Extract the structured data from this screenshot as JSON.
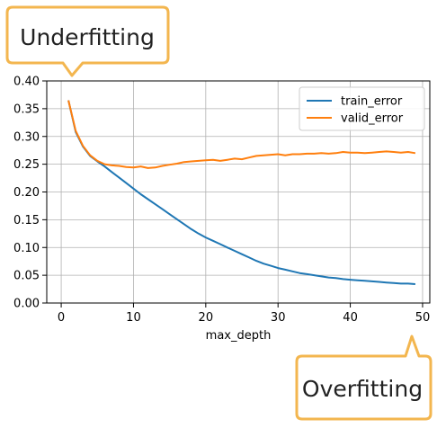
{
  "chart_data": {
    "type": "line",
    "xlabel": "max_depth",
    "ylabel": "",
    "xlim": [
      -2,
      51
    ],
    "ylim": [
      0.0,
      0.4
    ],
    "xticks": [
      0,
      10,
      20,
      30,
      40,
      50
    ],
    "yticks": [
      0.0,
      0.05,
      0.1,
      0.15,
      0.2,
      0.25,
      0.3,
      0.35,
      0.4
    ],
    "grid": true,
    "legend_position": "top-right",
    "x": [
      1,
      2,
      3,
      4,
      5,
      6,
      7,
      8,
      9,
      10,
      11,
      12,
      13,
      14,
      15,
      16,
      17,
      18,
      19,
      20,
      21,
      22,
      23,
      24,
      25,
      26,
      27,
      28,
      29,
      30,
      31,
      32,
      33,
      34,
      35,
      36,
      37,
      38,
      39,
      40,
      41,
      42,
      43,
      44,
      45,
      46,
      47,
      48,
      49
    ],
    "series": [
      {
        "name": "train_error",
        "color": "#1f77b4",
        "values": [
          0.365,
          0.308,
          0.282,
          0.265,
          0.255,
          0.246,
          0.236,
          0.226,
          0.216,
          0.206,
          0.196,
          0.187,
          0.178,
          0.169,
          0.16,
          0.151,
          0.142,
          0.133,
          0.125,
          0.118,
          0.112,
          0.106,
          0.1,
          0.094,
          0.088,
          0.082,
          0.076,
          0.071,
          0.067,
          0.063,
          0.06,
          0.057,
          0.054,
          0.052,
          0.05,
          0.048,
          0.046,
          0.045,
          0.043,
          0.042,
          0.041,
          0.04,
          0.039,
          0.038,
          0.037,
          0.036,
          0.035,
          0.035,
          0.034
        ]
      },
      {
        "name": "valid_error",
        "color": "#ff7f0e",
        "values": [
          0.365,
          0.31,
          0.283,
          0.266,
          0.256,
          0.25,
          0.248,
          0.247,
          0.245,
          0.244,
          0.246,
          0.243,
          0.244,
          0.247,
          0.249,
          0.251,
          0.254,
          0.255,
          0.256,
          0.257,
          0.258,
          0.256,
          0.258,
          0.26,
          0.259,
          0.262,
          0.265,
          0.266,
          0.267,
          0.268,
          0.266,
          0.268,
          0.268,
          0.269,
          0.269,
          0.27,
          0.269,
          0.27,
          0.272,
          0.271,
          0.271,
          0.27,
          0.271,
          0.272,
          0.273,
          0.272,
          0.271,
          0.272,
          0.27
        ]
      }
    ]
  },
  "callouts": {
    "underfitting": "Underfitting",
    "overfitting": "Overfitting"
  }
}
